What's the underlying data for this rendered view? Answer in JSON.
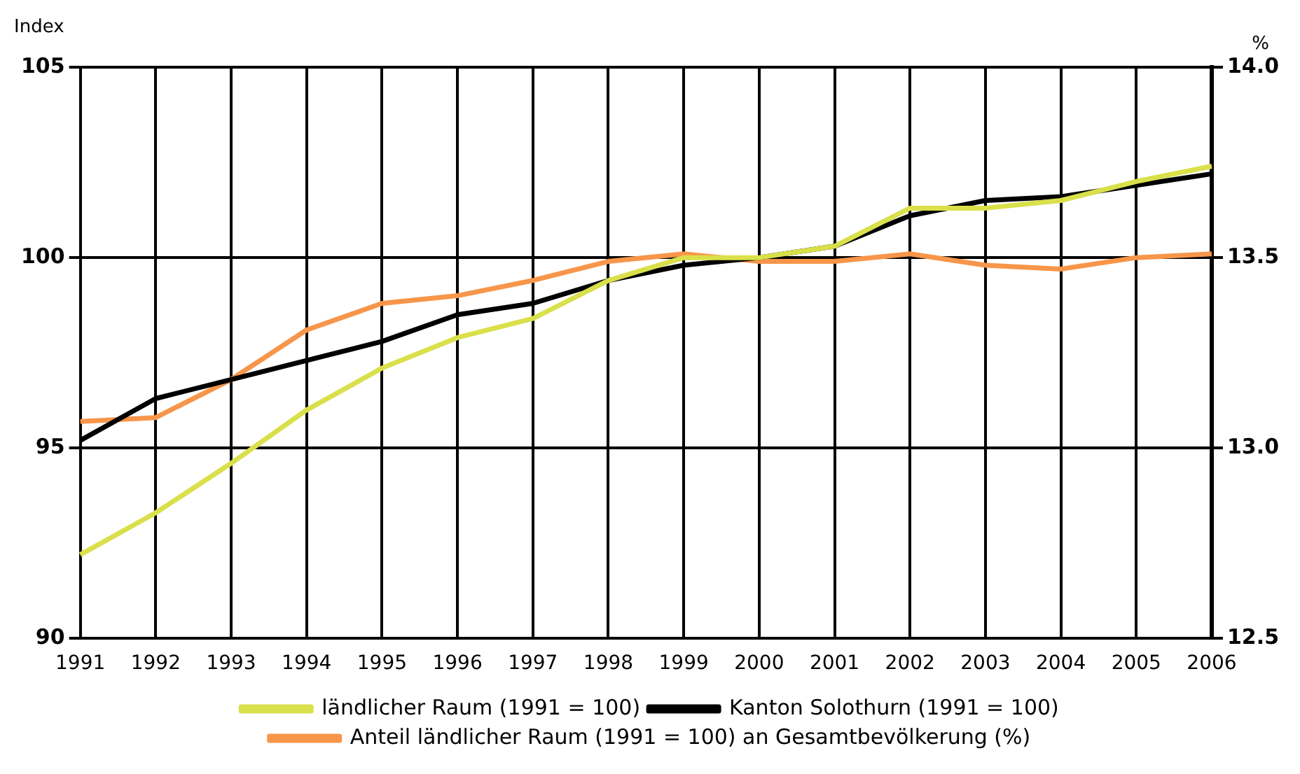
{
  "chart_data": {
    "type": "line",
    "ylabel": "Index",
    "y2label": "%",
    "categories": [
      "1991",
      "1992",
      "1993",
      "1994",
      "1995",
      "1996",
      "1997",
      "1998",
      "1999",
      "2000",
      "2001",
      "2002",
      "2003",
      "2004",
      "2005",
      "2006"
    ],
    "series": [
      {
        "name": "ländlicher Raum (1991 = 100)",
        "color": "#d9e04a",
        "values": [
          92.2,
          93.3,
          94.6,
          96.0,
          97.1,
          97.9,
          98.4,
          99.4,
          100.0,
          100.0,
          100.3,
          101.3,
          101.3,
          101.5,
          102.0,
          102.4
        ]
      },
      {
        "name": "Kanton Solothurn (1991 = 100)",
        "color": "#000000",
        "values": [
          95.2,
          96.3,
          96.8,
          97.3,
          97.8,
          98.5,
          98.8,
          99.4,
          99.8,
          100.0,
          100.3,
          101.1,
          101.5,
          101.6,
          101.9,
          102.2
        ]
      },
      {
        "name": "Anteil ländlicher Raum (1991 = 100) an Gesamtbevölkerung (%)",
        "color": "#f7964a",
        "axis": "y2",
        "values": [
          13.07,
          13.08,
          13.18,
          13.31,
          13.38,
          13.4,
          13.44,
          13.49,
          13.51,
          13.49,
          13.49,
          13.51,
          13.48,
          13.47,
          13.5,
          13.51
        ]
      }
    ],
    "ylim": [
      90,
      105
    ],
    "yticks": [
      90,
      95,
      100,
      105
    ],
    "y2lim": [
      12.5,
      14.0
    ],
    "y2ticks": [
      {
        "value": 12.5,
        "label": "12.5"
      },
      {
        "value": 13,
        "label": "13.0"
      },
      {
        "value": 13.5,
        "label": "13.5"
      },
      {
        "value": 14,
        "label": "14.0"
      }
    ],
    "grid": true,
    "legend": "bottom",
    "marker": "none",
    "line_style": "solid"
  }
}
